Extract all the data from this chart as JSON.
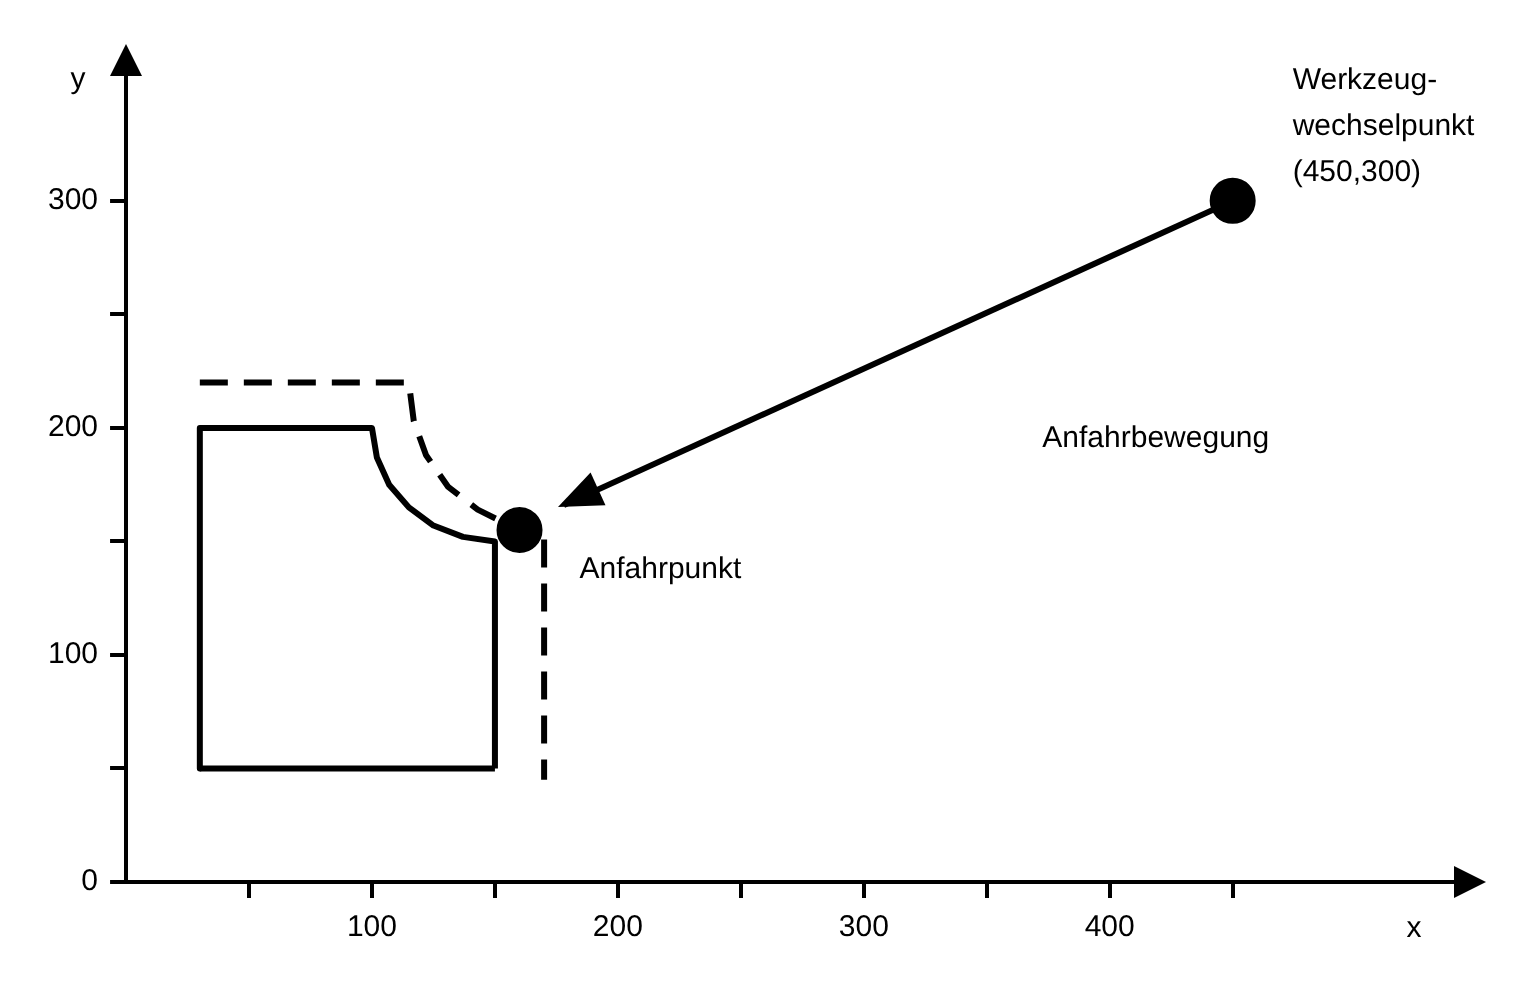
{
  "chart_data": {
    "type": "line",
    "xlabel": "x",
    "ylabel": "y",
    "xlim": [
      0,
      540
    ],
    "ylim": [
      0,
      355
    ],
    "xticks": [
      {
        "value": 50,
        "label": null
      },
      100,
      {
        "value": 150,
        "label": null
      },
      200,
      {
        "value": 250,
        "label": null
      },
      300,
      {
        "value": 350,
        "label": null
      },
      400,
      {
        "value": 450,
        "label": null
      }
    ],
    "yticks": [
      0,
      {
        "value": 50,
        "label": null
      },
      100,
      {
        "value": 150,
        "label": null
      },
      200,
      {
        "value": 250,
        "label": null
      },
      300
    ],
    "grid": false,
    "legend": false,
    "series": [
      {
        "type": "line",
        "color": "#000000",
        "line_style": "solid",
        "marker": "none",
        "x": [
          150,
          150,
          137,
          125,
          115,
          107,
          102,
          100,
          30,
          30
        ],
        "values": [
          50,
          150,
          152,
          157,
          165,
          175,
          187,
          200,
          200,
          50
        ]
      },
      {
        "type": "line",
        "color": "#000000",
        "line_style": "solid",
        "marker": "none",
        "x": [
          30,
          150
        ],
        "values": [
          50,
          50
        ]
      },
      {
        "type": "line",
        "color": "#000000",
        "line_style": "dashed",
        "marker": "none",
        "x": [
          30,
          115,
          117,
          122,
          131,
          143,
          156,
          170,
          170
        ],
        "values": [
          220,
          220,
          203,
          188,
          174,
          164,
          157,
          155,
          45
        ]
      },
      {
        "type": "line",
        "color": "#000000",
        "line_style": "solid",
        "marker": "none",
        "x": [
          450,
          178
        ],
        "values": [
          300,
          166
        ]
      },
      {
        "type": "scatter",
        "color": "#000000",
        "marker": "circle",
        "x": [
          160,
          450
        ],
        "values": [
          155,
          300
        ]
      }
    ],
    "annotations": [
      {
        "text": "Werkzeug-\nwechselpunkt\n(450,300)",
        "x": 450,
        "y": 300
      },
      "Anfahrbewegung",
      {
        "text": "Anfahrpunkt",
        "x": 160,
        "y": 155
      }
    ]
  }
}
